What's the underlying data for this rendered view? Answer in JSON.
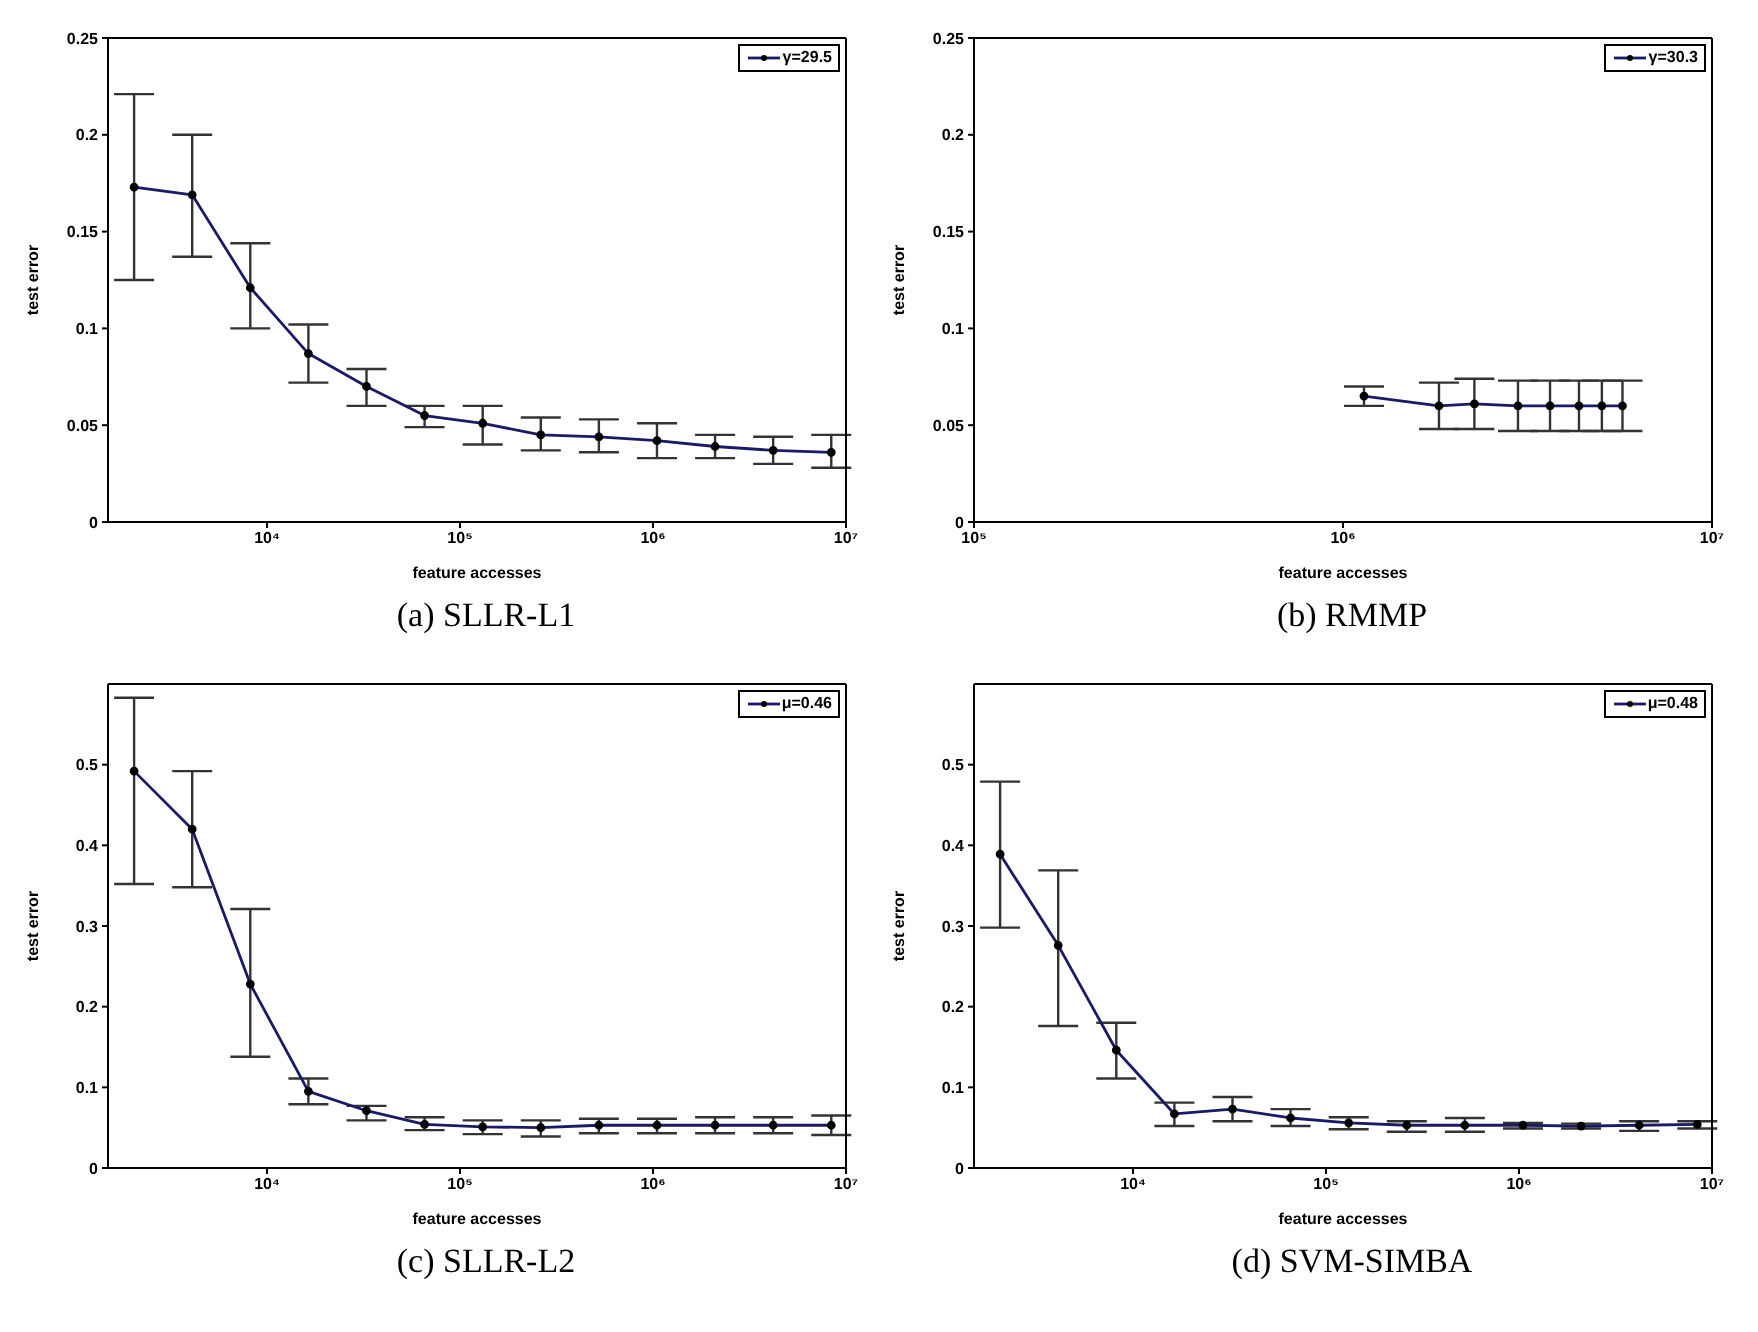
{
  "chart_data": [
    {
      "type": "line",
      "title": "(a) SLLR-L1",
      "xlabel": "feature accesses",
      "ylabel": "test error",
      "log": "x",
      "legend": "top right",
      "marker": "circle",
      "line_style": "solid",
      "grid": false,
      "xlim": [
        1500,
        10000000
      ],
      "xticks": [
        {
          "value": 10000,
          "label": "10⁴"
        },
        {
          "value": 100000,
          "label": "10⁵"
        },
        {
          "value": 1000000,
          "label": "10⁶"
        },
        {
          "value": 10000000,
          "label": "10⁷"
        }
      ],
      "ylim": [
        0,
        0.25
      ],
      "yticks": [
        0,
        0.05,
        0.1,
        0.15,
        0.2,
        0.25
      ],
      "x": [
        2048,
        4096,
        8192,
        16384,
        32768,
        65536,
        131072,
        262144,
        524288,
        1048576,
        2097152,
        4194304,
        8388608
      ],
      "series": [
        {
          "name": "γ=29.5",
          "color": "#1a1a66",
          "values": [
            0.173,
            0.169,
            0.121,
            0.087,
            0.07,
            0.055,
            0.051,
            0.045,
            0.044,
            0.042,
            0.039,
            0.037,
            0.036
          ],
          "errors": [
            [
              0.125,
              0.221
            ],
            [
              0.137,
              0.2
            ],
            [
              0.1,
              0.144
            ],
            [
              0.072,
              0.102
            ],
            [
              0.06,
              0.079
            ],
            [
              0.049,
              0.06
            ],
            [
              0.04,
              0.06
            ],
            [
              0.037,
              0.054
            ],
            [
              0.036,
              0.053
            ],
            [
              0.033,
              0.051
            ],
            [
              0.033,
              0.045
            ],
            [
              0.03,
              0.044
            ],
            [
              0.028,
              0.045
            ]
          ]
        }
      ]
    },
    {
      "type": "line",
      "title": "(b) RMMP",
      "xlabel": "feature accesses",
      "ylabel": "test error",
      "log": "x",
      "legend": "top right",
      "marker": "circle",
      "line_style": "solid",
      "grid": false,
      "xlim": [
        100000,
        10000000
      ],
      "xticks": [
        {
          "value": 100000,
          "label": "10⁵"
        },
        {
          "value": 1000000,
          "label": "10⁶"
        },
        {
          "value": 10000000,
          "label": "10⁷"
        }
      ],
      "ylim": [
        0,
        0.25
      ],
      "yticks": [
        0,
        0.05,
        0.1,
        0.15,
        0.2,
        0.25
      ],
      "x": [
        1140000,
        1820000,
        2270000,
        2980000,
        3640000,
        4360000,
        5030000,
        5720000
      ],
      "series": [
        {
          "name": "γ=30.3",
          "color": "#1a1a66",
          "values": [
            0.065,
            0.06,
            0.061,
            0.06,
            0.06,
            0.06,
            0.06,
            0.06
          ],
          "errors": [
            [
              0.06,
              0.07
            ],
            [
              0.048,
              0.072
            ],
            [
              0.048,
              0.074
            ],
            [
              0.047,
              0.073
            ],
            [
              0.047,
              0.073
            ],
            [
              0.047,
              0.073
            ],
            [
              0.047,
              0.073
            ],
            [
              0.047,
              0.073
            ]
          ]
        }
      ]
    },
    {
      "type": "line",
      "title": "(c) SLLR-L2",
      "xlabel": "feature accesses",
      "ylabel": "test error",
      "log": "x",
      "legend": "top right",
      "marker": "circle",
      "line_style": "solid",
      "grid": false,
      "xlim": [
        1500,
        10000000
      ],
      "xticks": [
        {
          "value": 10000,
          "label": "10⁴"
        },
        {
          "value": 100000,
          "label": "10⁵"
        },
        {
          "value": 1000000,
          "label": "10⁶"
        },
        {
          "value": 10000000,
          "label": "10⁷"
        }
      ],
      "ylim": [
        0,
        0.6
      ],
      "yticks": [
        0,
        0.1,
        0.2,
        0.3,
        0.4,
        0.5
      ],
      "x": [
        2048,
        4096,
        8192,
        16384,
        32768,
        65536,
        131072,
        262144,
        524288,
        1048576,
        2097152,
        4194304,
        8388608
      ],
      "series": [
        {
          "name": "μ=0.46",
          "color": "#1a1a66",
          "values": [
            0.492,
            0.42,
            0.228,
            0.095,
            0.071,
            0.054,
            0.051,
            0.05,
            0.053,
            0.053,
            0.053,
            0.053,
            0.053
          ],
          "errors": [
            [
              0.352,
              0.583
            ],
            [
              0.348,
              0.492
            ],
            [
              0.138,
              0.321
            ],
            [
              0.079,
              0.111
            ],
            [
              0.059,
              0.077
            ],
            [
              0.047,
              0.063
            ],
            [
              0.042,
              0.059
            ],
            [
              0.039,
              0.059
            ],
            [
              0.043,
              0.061
            ],
            [
              0.043,
              0.061
            ],
            [
              0.043,
              0.063
            ],
            [
              0.043,
              0.063
            ],
            [
              0.041,
              0.065
            ]
          ]
        }
      ]
    },
    {
      "type": "line",
      "title": "(d) SVM-SIMBA",
      "xlabel": "feature accesses",
      "ylabel": "test error",
      "log": "x",
      "legend": "top right",
      "marker": "circle",
      "line_style": "solid",
      "grid": false,
      "xlim": [
        1500,
        10000000
      ],
      "xticks": [
        {
          "value": 10000,
          "label": "10⁴"
        },
        {
          "value": 100000,
          "label": "10⁵"
        },
        {
          "value": 1000000,
          "label": "10⁶"
        },
        {
          "value": 10000000,
          "label": "10⁷"
        }
      ],
      "ylim": [
        0,
        0.6
      ],
      "yticks": [
        0,
        0.1,
        0.2,
        0.3,
        0.4,
        0.5
      ],
      "x": [
        2048,
        4096,
        8192,
        16384,
        32768,
        65536,
        131072,
        262144,
        524288,
        1048576,
        2097152,
        4194304,
        8388608
      ],
      "series": [
        {
          "name": "μ=0.48",
          "color": "#1a1a66",
          "values": [
            0.389,
            0.276,
            0.146,
            0.067,
            0.073,
            0.062,
            0.056,
            0.053,
            0.053,
            0.053,
            0.052,
            0.053,
            0.054
          ],
          "errors": [
            [
              0.298,
              0.479
            ],
            [
              0.176,
              0.369
            ],
            [
              0.111,
              0.18
            ],
            [
              0.052,
              0.081
            ],
            [
              0.058,
              0.088
            ],
            [
              0.052,
              0.073
            ],
            [
              0.048,
              0.063
            ],
            [
              0.045,
              0.058
            ],
            [
              0.045,
              0.062
            ],
            [
              0.049,
              0.056
            ],
            [
              0.049,
              0.055
            ],
            [
              0.046,
              0.058
            ],
            [
              0.049,
              0.058
            ]
          ]
        }
      ]
    }
  ]
}
